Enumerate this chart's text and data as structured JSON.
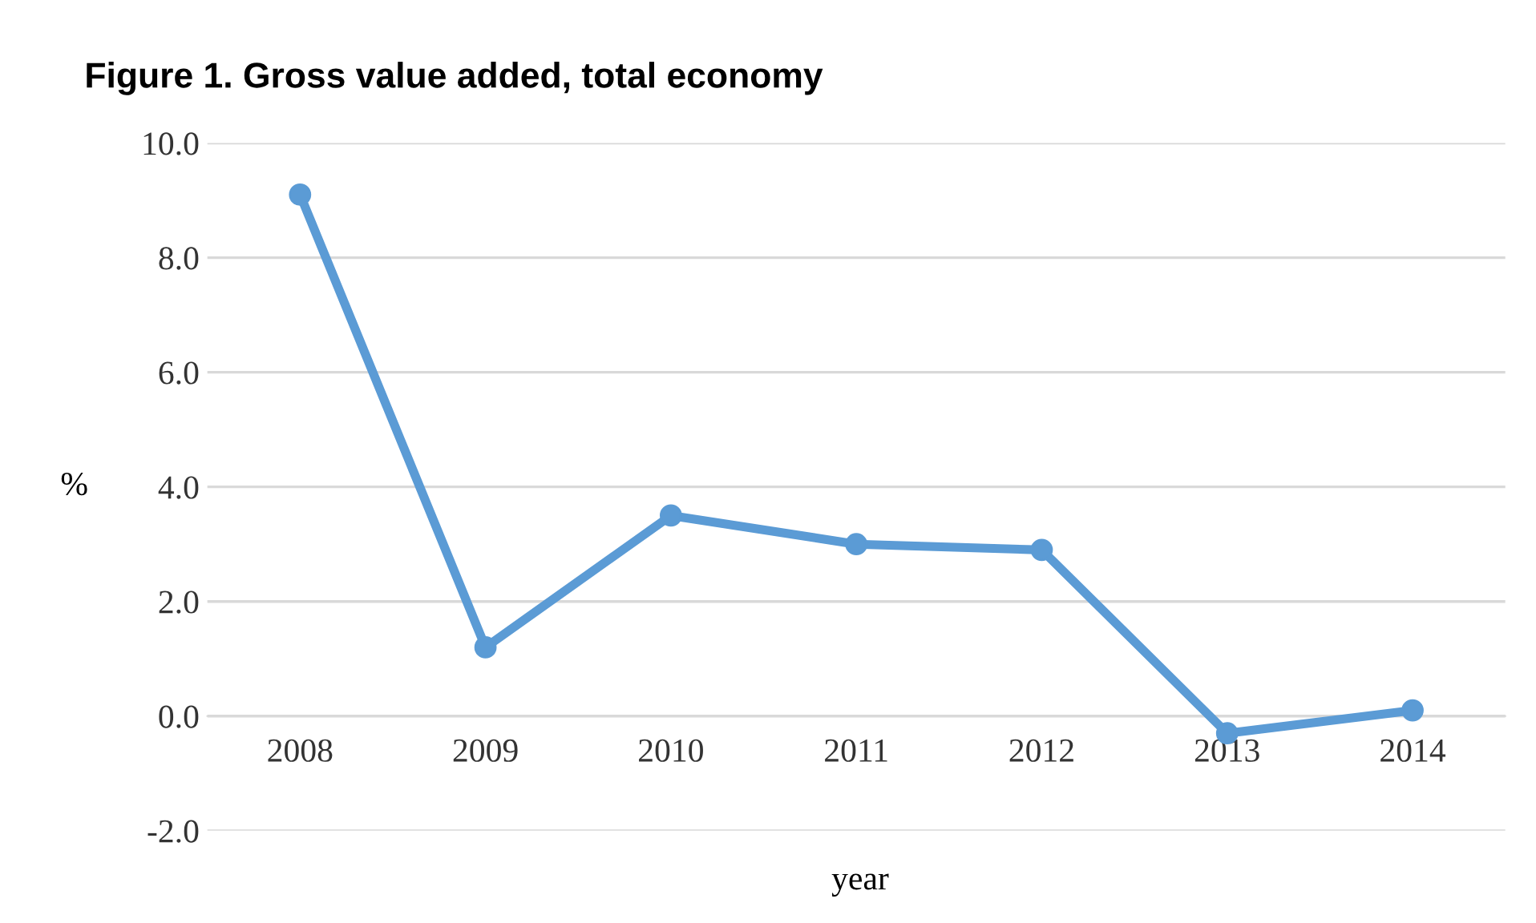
{
  "chart_data": {
    "type": "line",
    "title": "Figure 1. Gross value added, total economy",
    "xlabel": "year",
    "ylabel": "%",
    "categories": [
      "2008",
      "2009",
      "2010",
      "2011",
      "2012",
      "2013",
      "2014"
    ],
    "series": [
      {
        "color": "#5b9bd5",
        "values": [
          9.1,
          1.2,
          3.5,
          3.0,
          2.9,
          -0.3,
          0.1
        ]
      }
    ],
    "ylim": [
      -2.0,
      10.0
    ],
    "yticks": [
      {
        "value": -2,
        "label": "-2.0"
      },
      {
        "value": 0,
        "label": "0.0"
      },
      {
        "value": 2,
        "label": "2.0"
      },
      {
        "value": 4,
        "label": "4.0"
      },
      {
        "value": 6,
        "label": "6.0"
      },
      {
        "value": 8,
        "label": "8.0"
      },
      {
        "value": 10,
        "label": "10.0"
      }
    ],
    "grid": "y",
    "marker": "circle",
    "line_style": "solid",
    "legend": false
  }
}
